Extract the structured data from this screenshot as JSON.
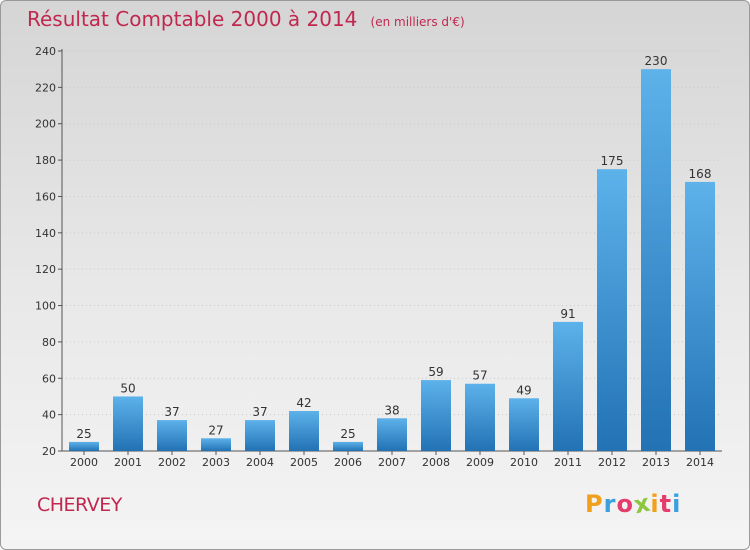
{
  "title": "Résultat Comptable 2000 à 2014",
  "unit_note": "(en milliers d'€)",
  "location": "CHERVEY",
  "brand": {
    "letters": [
      "P",
      "r",
      "o",
      "x",
      "i",
      "t",
      "i"
    ],
    "colors": [
      "#f0a01c",
      "#3aa0de",
      "#e63c6c",
      "#8dc63f",
      "#f0a01c",
      "#e63c6c",
      "#3aa0de"
    ]
  },
  "colors": {
    "bar_light": "#5db2ea",
    "bar_dark": "#2272b4",
    "title": "#c0284f"
  },
  "chart_data": {
    "type": "bar",
    "title": "Résultat Comptable 2000 à 2014",
    "subtitle": "(en milliers d'€)",
    "xlabel": "",
    "ylabel": "",
    "categories": [
      "2000",
      "2001",
      "2002",
      "2003",
      "2004",
      "2005",
      "2006",
      "2007",
      "2008",
      "2009",
      "2010",
      "2011",
      "2012",
      "2013",
      "2014"
    ],
    "values": [
      25,
      50,
      37,
      27,
      37,
      42,
      25,
      38,
      59,
      57,
      49,
      91,
      175,
      230,
      168
    ],
    "ylim": [
      20,
      240
    ],
    "yticks": [
      20,
      40,
      60,
      80,
      100,
      120,
      140,
      160,
      180,
      200,
      220,
      240
    ],
    "grid": true
  }
}
